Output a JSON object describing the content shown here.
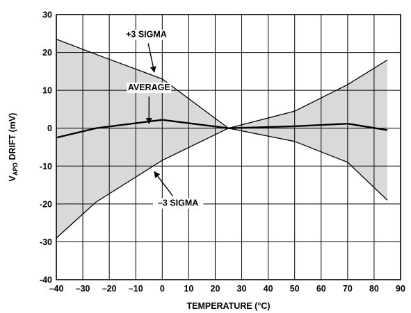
{
  "chart_data": {
    "type": "line",
    "title": "",
    "xlabel": "TEMPERATURE (°C)",
    "ylabel": {
      "main": "V",
      "subscript": "APD",
      "rest": " DRIFT (mV)"
    },
    "xlim": [
      -40,
      90
    ],
    "ylim": [
      -40,
      30
    ],
    "xticks": [
      -40,
      -30,
      -20,
      -10,
      0,
      10,
      20,
      30,
      40,
      50,
      60,
      70,
      80,
      90
    ],
    "xtick_labels": [
      "–40",
      "–30",
      "–20",
      "–10",
      "0",
      "10",
      "20",
      "30",
      "40",
      "50",
      "60",
      "70",
      "80",
      "90"
    ],
    "yticks": [
      30,
      20,
      10,
      0,
      -10,
      -20,
      -30,
      -40
    ],
    "ytick_labels": [
      "30",
      "20",
      "10",
      "0",
      "-10",
      "-20",
      "-30",
      "-40"
    ],
    "grid": true,
    "shaded_band": "between +3 SIGMA and –3 SIGMA",
    "series": [
      {
        "name": "+3 SIGMA",
        "x": [
          -40,
          -25,
          0,
          25,
          50,
          70,
          85
        ],
        "y": [
          23.5,
          19.5,
          13,
          0,
          -3.5,
          -9,
          -19
        ]
      },
      {
        "name": "AVERAGE",
        "x": [
          -40,
          -25,
          0,
          25,
          50,
          70,
          85
        ],
        "y": [
          -2.5,
          0,
          2.2,
          0,
          0.5,
          1.2,
          -0.5
        ]
      },
      {
        "name": "–3 SIGMA",
        "x": [
          -40,
          -25,
          0,
          25,
          50,
          70,
          85
        ],
        "y": [
          -29,
          -19.5,
          -8.5,
          0,
          4.5,
          11.5,
          18
        ]
      }
    ],
    "annotations": [
      {
        "text": "+3 SIGMA",
        "series": "+3 SIGMA",
        "label_x": -6,
        "label_y": 24,
        "arrow_to_x": -3,
        "arrow_to_y": 14.8
      },
      {
        "text": "AVERAGE",
        "series": "AVERAGE",
        "label_x": -5,
        "label_y": 10,
        "arrow_to_x": -5,
        "arrow_to_y": 1.2
      },
      {
        "text": "–3 SIGMA",
        "series": "–3 SIGMA",
        "label_x": 6,
        "label_y": -20.5,
        "arrow_to_x": -3,
        "arrow_to_y": -11.5
      }
    ],
    "colors": {
      "band_fill": "#d9d9d9",
      "line": "#000000",
      "grid": "#000000"
    }
  }
}
